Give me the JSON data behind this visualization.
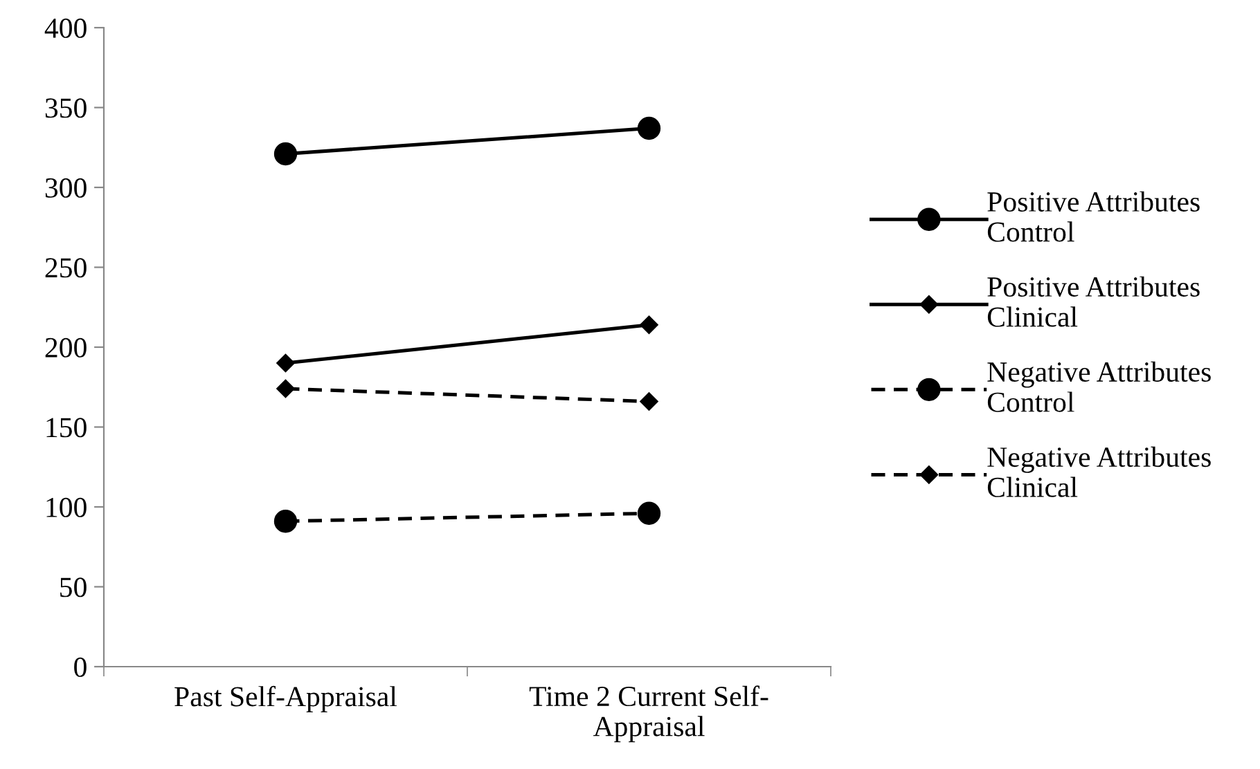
{
  "chart_data": {
    "type": "line",
    "categories": [
      "Past Self-Appraisal",
      "Time 2 Current Self-\nAppraisal"
    ],
    "series": [
      {
        "name": "Positive Attributes\nControl",
        "color": "#000000",
        "values": [
          321,
          337
        ],
        "marker": "circle",
        "line_style": "solid"
      },
      {
        "name": "Positive Attributes\nClinical",
        "color": "#000000",
        "values": [
          190,
          214
        ],
        "marker": "diamond",
        "line_style": "solid"
      },
      {
        "name": "Negative Attributes\nControl",
        "color": "#000000",
        "values": [
          91,
          96
        ],
        "marker": "circle",
        "line_style": "dashed"
      },
      {
        "name": "Negative Attributes\nClinical",
        "color": "#000000",
        "values": [
          174,
          166
        ],
        "marker": "diamond",
        "line_style": "dashed"
      }
    ],
    "ylim": [
      0,
      400
    ],
    "yticks": [
      0,
      50,
      100,
      150,
      200,
      250,
      300,
      350,
      400
    ],
    "grid": false,
    "legend": "right"
  }
}
